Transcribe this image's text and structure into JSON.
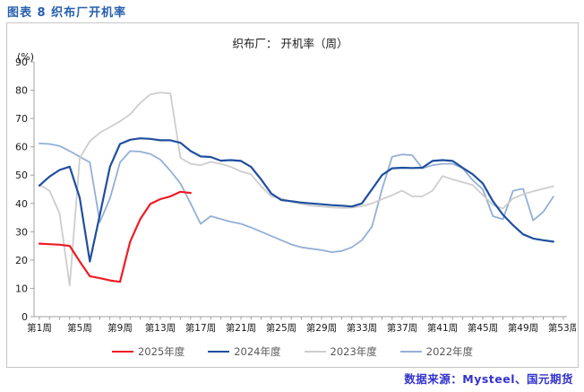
{
  "header": {
    "title": "图表 8 织布厂开机率"
  },
  "footer": {
    "source": "数据来源：Mysteel、国元期货"
  },
  "chart_data": {
    "type": "line",
    "title": "织布厂： 开机率（周）",
    "unit_label": "(%)",
    "ylim": [
      0,
      90
    ],
    "ytick_interval": 10,
    "ytick_labels": [
      "0",
      "10",
      "20",
      "30",
      "40",
      "50",
      "60",
      "70",
      "80",
      "90"
    ],
    "x_weeks_total": 53,
    "xtick_label_weeks": [
      1,
      5,
      9,
      13,
      17,
      21,
      25,
      29,
      33,
      37,
      41,
      45,
      49,
      53
    ],
    "xtick_labels": [
      "第1周",
      "第5周",
      "第9周",
      "第13周",
      "第17周",
      "第21周",
      "第25周",
      "第29周",
      "第33周",
      "第37周",
      "第41周",
      "第45周",
      "第49周",
      "第53周"
    ],
    "grid": false,
    "legend_position": "bottom",
    "axis_color": "#a0a0a0",
    "tick_label_color": "#1a1a1a",
    "series": [
      {
        "name": "2025年度",
        "color": "#ee1c25",
        "start_week": 1,
        "values": [
          25.8,
          25.6,
          25.4,
          25.0,
          19.5,
          14.3,
          13.6,
          12.8,
          12.3,
          26.5,
          34.4,
          39.8,
          41.5,
          42.5,
          44.1,
          43.7
        ]
      },
      {
        "name": "2024年度",
        "color": "#1f4e9f",
        "start_week": 1,
        "values": [
          46.3,
          49.5,
          51.8,
          53.0,
          42.0,
          19.5,
          36.0,
          53.0,
          61.0,
          62.5,
          63.0,
          62.8,
          62.3,
          62.3,
          61.4,
          58.5,
          56.6,
          56.4,
          55.1,
          55.3,
          55.0,
          52.9,
          48.5,
          43.5,
          41.2,
          40.8,
          40.3,
          40.0,
          39.7,
          39.4,
          39.2,
          38.9,
          40.0,
          45.0,
          50.0,
          52.4,
          52.6,
          52.5,
          52.6,
          55.0,
          55.3,
          55.0,
          52.6,
          50.3,
          47.1,
          40.8,
          36.0,
          32.3,
          29.1,
          27.6,
          27.0,
          26.5
        ]
      },
      {
        "name": "2023年度",
        "color": "#cdcdcd",
        "start_week": 1,
        "values": [
          46.6,
          44.5,
          36.5,
          11.0,
          56.0,
          62.0,
          65.0,
          67.0,
          69.0,
          71.5,
          75.5,
          78.5,
          79.2,
          78.8,
          56.1,
          54.0,
          53.5,
          54.7,
          54.0,
          52.9,
          51.3,
          50.3,
          46.0,
          42.5,
          41.8,
          40.5,
          39.8,
          39.2,
          38.9,
          38.6,
          38.4,
          38.5,
          39.0,
          40.0,
          41.5,
          42.9,
          44.5,
          42.5,
          42.5,
          44.5,
          49.7,
          48.5,
          47.5,
          46.5,
          43.0,
          39.5,
          38.2,
          41.8,
          43.2,
          44.3,
          45.2,
          46.0
        ]
      },
      {
        "name": "2022年度",
        "color": "#94afd6",
        "start_week": 1,
        "values": [
          61.2,
          61.0,
          60.3,
          58.5,
          56.5,
          54.5,
          33.4,
          41.8,
          54.5,
          58.5,
          58.3,
          57.5,
          55.5,
          51.5,
          47.0,
          40.0,
          32.8,
          35.5,
          34.5,
          33.5,
          32.8,
          31.5,
          30.0,
          28.5,
          27.0,
          25.5,
          24.5,
          24.0,
          23.5,
          22.8,
          23.2,
          24.5,
          27.0,
          31.8,
          45.0,
          56.5,
          57.3,
          57.0,
          52.4,
          53.5,
          54.0,
          54.0,
          52.4,
          48.2,
          45.0,
          35.5,
          34.4,
          44.5,
          45.2,
          34.0,
          37.0,
          42.4
        ]
      }
    ]
  }
}
